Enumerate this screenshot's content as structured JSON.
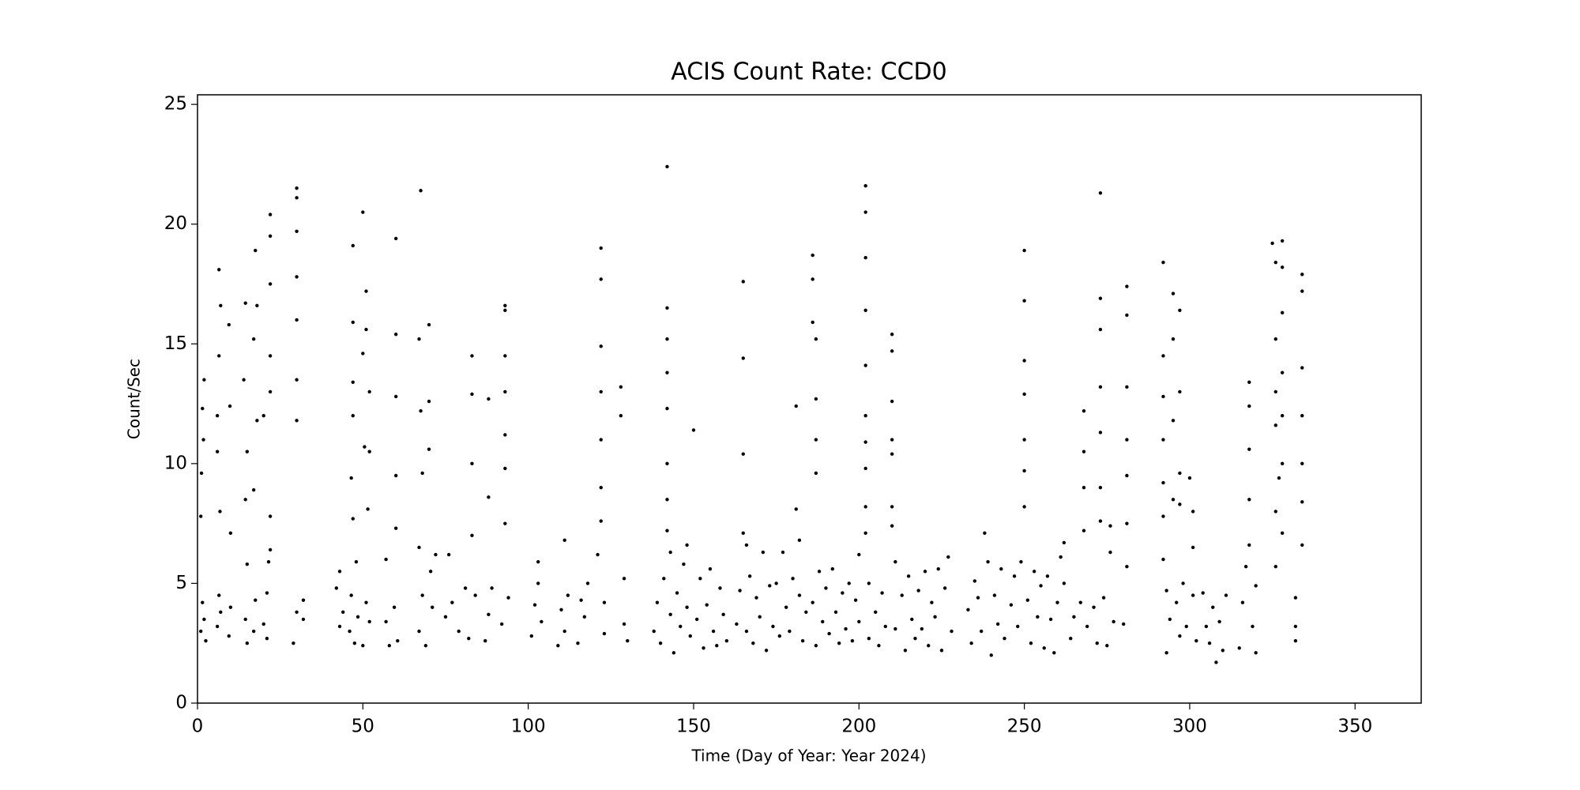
{
  "chart_data": {
    "type": "scatter",
    "title": "ACIS Count Rate: CCD0",
    "x_label": "Time (Day of Year: Year 2024)",
    "y_label": "Count/Sec",
    "color": "#000000",
    "xlim": [
      0,
      370
    ],
    "ylim": [
      0,
      25.4
    ],
    "xticks": [
      0,
      50,
      100,
      150,
      200,
      250,
      300,
      350
    ],
    "yticks": [
      0,
      5,
      10,
      15,
      20,
      25
    ],
    "x": [
      1,
      1.5,
      2,
      1.2,
      1.5,
      2,
      1,
      2.5,
      1.8,
      6,
      6.5,
      7,
      6,
      6.5,
      6.5,
      6,
      7,
      6.8,
      9.5,
      10,
      9.5,
      9.8,
      10,
      14.5,
      15,
      14.5,
      14,
      15,
      14.5,
      15,
      17,
      17.5,
      17.5,
      17,
      18,
      17,
      18,
      20,
      21,
      21,
      22,
      22,
      22,
      22,
      22,
      22,
      21.5,
      22,
      20,
      29,
      30,
      30,
      30,
      30,
      30,
      30,
      30,
      30,
      32,
      32,
      42,
      43,
      43,
      44,
      46,
      46.5,
      47,
      47,
      47,
      47,
      46.5,
      47,
      47.5,
      48,
      48.5,
      50,
      50,
      50,
      50.5,
      51,
      51,
      52,
      52,
      51.5,
      51,
      52,
      57,
      57,
      58,
      60,
      60,
      60,
      60,
      60,
      59.5,
      60.5,
      67,
      68,
      67.5,
      67,
      67.5,
      68,
      67,
      69,
      70,
      70,
      70,
      70.5,
      71,
      72,
      75,
      76,
      77,
      79,
      81,
      82,
      83,
      83,
      83,
      83,
      84,
      87,
      88,
      88,
      88,
      89,
      92,
      93,
      93,
      93,
      93,
      93,
      93,
      93,
      94,
      101,
      102,
      103,
      103,
      104,
      109,
      110,
      111,
      112,
      111,
      115,
      116,
      117,
      118,
      121,
      122,
      122,
      122,
      122,
      122,
      122,
      122,
      123,
      123,
      128,
      128,
      129,
      129,
      130,
      138,
      139,
      140,
      141,
      142,
      142,
      142,
      142,
      142,
      142,
      142,
      142,
      143,
      143,
      144,
      145,
      146,
      147,
      148,
      148,
      149,
      150,
      151,
      152,
      153,
      154,
      155,
      156,
      157,
      158,
      159,
      160,
      163,
      164,
      165,
      165,
      165,
      165,
      166,
      166,
      167,
      168,
      169,
      170,
      171,
      172,
      173,
      174,
      175,
      176,
      177,
      178,
      179,
      180,
      181,
      181,
      182,
      182,
      183,
      184,
      186,
      186,
      186,
      187,
      187,
      187,
      187,
      186,
      187,
      188,
      189,
      190,
      191,
      192,
      193,
      194,
      195,
      196,
      197,
      198,
      199,
      200,
      200,
      202,
      202,
      202,
      202,
      202,
      202,
      202,
      202,
      202,
      202,
      203,
      203,
      205,
      206,
      207,
      208,
      210,
      210,
      210,
      210,
      210,
      210,
      210,
      211,
      211,
      213,
      214,
      215,
      216,
      217,
      218,
      219,
      220,
      221,
      222,
      223,
      224,
      225,
      226,
      227,
      228,
      233,
      234,
      235,
      236,
      237,
      238,
      239,
      240,
      241,
      242,
      243,
      244,
      246,
      247,
      248,
      249,
      250,
      250,
      250,
      250,
      250,
      250,
      250,
      251,
      252,
      253,
      254,
      255,
      256,
      257,
      258,
      259,
      260,
      261,
      262,
      262,
      264,
      265,
      267,
      268,
      268,
      268,
      268,
      269,
      271,
      272,
      273,
      273,
      273,
      273,
      273,
      273,
      273,
      274,
      275,
      276,
      276,
      277,
      281,
      281,
      281,
      281,
      281,
      281,
      281,
      280,
      292,
      292,
      292,
      292,
      292,
      292,
      292,
      293,
      293,
      294,
      295,
      295,
      295,
      295,
      296,
      297,
      297,
      297,
      297,
      297,
      298,
      299,
      300,
      301,
      301,
      301,
      302,
      304,
      305,
      306,
      307,
      308,
      309,
      310,
      311,
      315,
      316,
      317,
      318,
      318,
      318,
      318,
      318,
      319,
      320,
      320,
      325,
      326,
      326,
      326,
      326,
      327,
      326,
      326,
      328,
      328,
      328,
      328,
      328,
      328,
      328,
      332,
      332,
      332,
      334,
      334,
      334,
      334,
      334,
      334,
      334
    ],
    "values": [
      3.0,
      4.2,
      3.5,
      9.6,
      12.3,
      13.5,
      7.8,
      2.6,
      11,
      3.2,
      4.5,
      3.8,
      12,
      14.5,
      18.1,
      10.5,
      16.6,
      8,
      2.8,
      4.0,
      15.8,
      12.4,
      7.1,
      3.5,
      2.5,
      16.7,
      13.5,
      10.5,
      8.5,
      5.8,
      3.0,
      4.3,
      18.9,
      15.2,
      11.8,
      8.9,
      16.6,
      3.3,
      2.7,
      4.6,
      20.4,
      19.5,
      17.5,
      14.5,
      13,
      7.8,
      5.9,
      6.4,
      12,
      2.5,
      3.8,
      21.5,
      21.1,
      19.7,
      17.8,
      16,
      13.5,
      11.8,
      3.5,
      4.3,
      4.8,
      3.2,
      5.5,
      3.8,
      3.0,
      4.5,
      19.1,
      15.9,
      13.4,
      12,
      9.4,
      7.7,
      2.5,
      5.9,
      3.6,
      2.4,
      20.5,
      14.6,
      10.7,
      17.2,
      15.6,
      13,
      10.5,
      8.1,
      4.2,
      3.4,
      3.4,
      6.0,
      2.4,
      19.4,
      15.4,
      12.8,
      9.5,
      7.3,
      4.0,
      2.6,
      3.0,
      4.5,
      21.4,
      15.2,
      12.2,
      9.6,
      6.5,
      2.4,
      15.8,
      12.6,
      10.6,
      5.5,
      4.0,
      6.2,
      3.6,
      6.2,
      4.2,
      3.0,
      4.8,
      2.7,
      14.5,
      12.9,
      10,
      7,
      4.5,
      2.6,
      3.7,
      12.7,
      8.6,
      4.8,
      3.3,
      16.6,
      16.4,
      14.5,
      13,
      11.2,
      9.8,
      7.5,
      4.4,
      2.8,
      4.1,
      5.9,
      5.0,
      3.4,
      2.4,
      3.9,
      6.8,
      4.5,
      3.0,
      2.5,
      4.3,
      3.6,
      5.0,
      6.2,
      19,
      17.7,
      14.9,
      13,
      11,
      9,
      7.6,
      4.2,
      2.9,
      13.2,
      12,
      5.2,
      3.3,
      2.6,
      3.0,
      4.2,
      2.5,
      5.2,
      22.4,
      16.5,
      15.2,
      13.8,
      12.3,
      10,
      8.5,
      7.2,
      6.3,
      3.7,
      2.1,
      4.6,
      3.2,
      5.8,
      6.6,
      4.0,
      2.8,
      11.4,
      3.5,
      5.2,
      2.3,
      4.1,
      5.6,
      3.0,
      2.4,
      4.8,
      3.7,
      2.6,
      3.3,
      4.7,
      17.6,
      14.4,
      10.4,
      7.1,
      6.6,
      3.0,
      5.3,
      2.5,
      4.4,
      3.6,
      6.3,
      2.2,
      4.9,
      3.2,
      5.0,
      2.8,
      6.3,
      4.0,
      3.0,
      5.2,
      8.1,
      12.4,
      6.8,
      4.5,
      2.6,
      3.8,
      18.7,
      17.7,
      15.9,
      15.2,
      12.7,
      11,
      9.6,
      4.2,
      2.4,
      5.5,
      3.4,
      4.8,
      2.9,
      5.6,
      3.8,
      2.5,
      4.6,
      3.1,
      5.0,
      2.6,
      4.3,
      6.2,
      3.4,
      21.6,
      20.5,
      18.6,
      16.4,
      14.1,
      12,
      10.9,
      9.8,
      8.2,
      7.1,
      5.0,
      2.7,
      3.8,
      2.4,
      4.6,
      3.2,
      15.4,
      14.7,
      12.6,
      11,
      10.4,
      8.2,
      7.4,
      5.9,
      3.1,
      4.5,
      2.2,
      5.3,
      3.5,
      2.7,
      4.7,
      3.1,
      5.5,
      2.4,
      4.2,
      3.6,
      5.6,
      2.2,
      4.8,
      6.1,
      3.0,
      3.9,
      2.5,
      5.1,
      4.4,
      3.0,
      7.1,
      5.9,
      2.0,
      4.5,
      3.3,
      5.6,
      2.7,
      4.1,
      5.3,
      3.2,
      5.9,
      18.9,
      16.8,
      14.3,
      12.9,
      11,
      9.7,
      8.2,
      4.3,
      2.5,
      5.5,
      3.6,
      4.9,
      2.3,
      5.3,
      3.5,
      2.1,
      4.2,
      6.1,
      5.0,
      6.7,
      2.7,
      3.6,
      4.2,
      12.2,
      10.5,
      9,
      7.2,
      3.2,
      4.0,
      2.5,
      21.3,
      16.9,
      15.6,
      13.2,
      11.3,
      9,
      7.6,
      4.4,
      2.4,
      6.3,
      7.4,
      3.4,
      17.4,
      16.2,
      13.2,
      11,
      9.5,
      7.5,
      5.7,
      3.3,
      18.4,
      14.5,
      12.8,
      11,
      9.2,
      7.8,
      6,
      4.7,
      2.1,
      3.5,
      17.1,
      15.2,
      11.8,
      8.5,
      4.2,
      16.4,
      13,
      9.6,
      8.3,
      2.8,
      5.0,
      3.2,
      9.4,
      8.0,
      6.5,
      4.5,
      2.6,
      4.6,
      3.2,
      2.5,
      4.0,
      1.7,
      3.4,
      2.2,
      4.5,
      2.3,
      4.2,
      5.7,
      13.4,
      12.4,
      10.6,
      8.5,
      6.6,
      3.2,
      4.9,
      2.1,
      19.2,
      18.4,
      15.2,
      13,
      11.6,
      9.4,
      8,
      5.7,
      19.3,
      18.2,
      16.3,
      13.8,
      12,
      10,
      7.1,
      4.4,
      3.2,
      2.6,
      17.9,
      17.2,
      14,
      12,
      10,
      8.4,
      6.6
    ]
  }
}
